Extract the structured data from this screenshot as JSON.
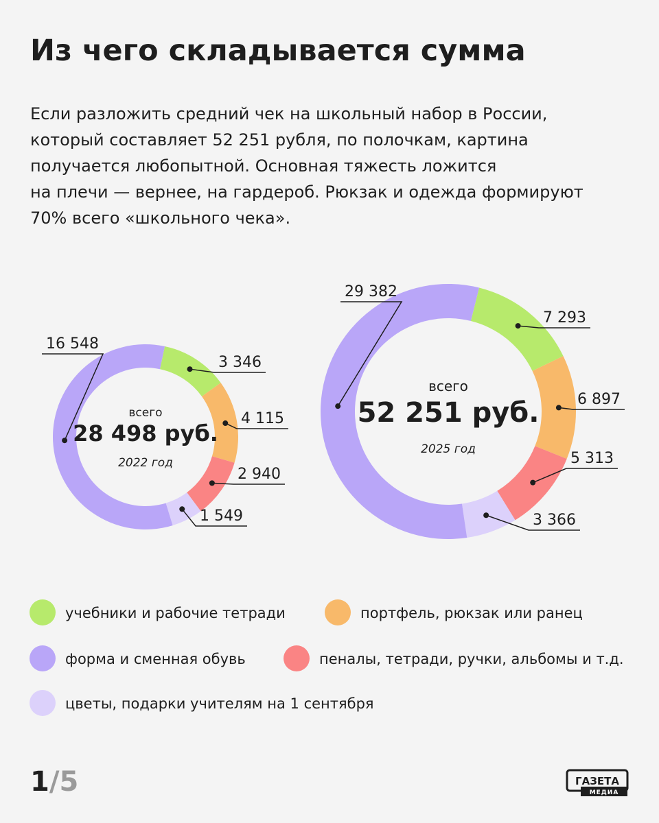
{
  "title": "Из чего складывается сумма",
  "description": [
    "Если разложить средний чек на школьный набор в России,",
    "который составляет 52 251 рубля, по полочкам, картина",
    "получается любопытной. Основная тяжесть ложится",
    "на плечи — вернее, на гардероб. Рюкзак и одежда формируют",
    "70% всего «школьного чека»."
  ],
  "chart_data": [
    {
      "type": "donut",
      "center_caption": "всего",
      "total": "28 498 руб.",
      "year": "2022 год",
      "categories": [
        "учебники и рабочие тетради",
        "портфель, рюкзак или ранец",
        "пеналы, тетради, ручки, альбомы и т.д.",
        "цветы, подарки учителям на 1 сентября",
        "форма и сменная обувь"
      ],
      "colors": [
        "#b7ea6c",
        "#f8b96a",
        "#fa8484",
        "#dcd1fb",
        "#b9a6f8"
      ],
      "values": [
        3346,
        4115,
        2940,
        1549,
        16548
      ],
      "value_labels": [
        "3 346",
        "4 115",
        "2 940",
        "1 549",
        "16 548"
      ]
    },
    {
      "type": "donut",
      "center_caption": "всего",
      "total": "52 251 руб.",
      "year": "2025 год",
      "categories": [
        "учебники и рабочие тетради",
        "портфель, рюкзак или ранец",
        "пеналы, тетради, ручки, альбомы и т.д.",
        "цветы, подарки учителям на 1 сентября",
        "форма и сменная обувь"
      ],
      "colors": [
        "#b7ea6c",
        "#f8b96a",
        "#fa8484",
        "#dcd1fb",
        "#b9a6f8"
      ],
      "values": [
        7293,
        6897,
        5313,
        3366,
        29382
      ],
      "value_labels": [
        "7 293",
        "6 897",
        "5 313",
        "3 366",
        "29 382"
      ]
    }
  ],
  "pager": {
    "current": "1",
    "rest": "/5"
  },
  "logo": {
    "top": "ГАЗЕТА",
    "bottom": "МЕДИА"
  }
}
